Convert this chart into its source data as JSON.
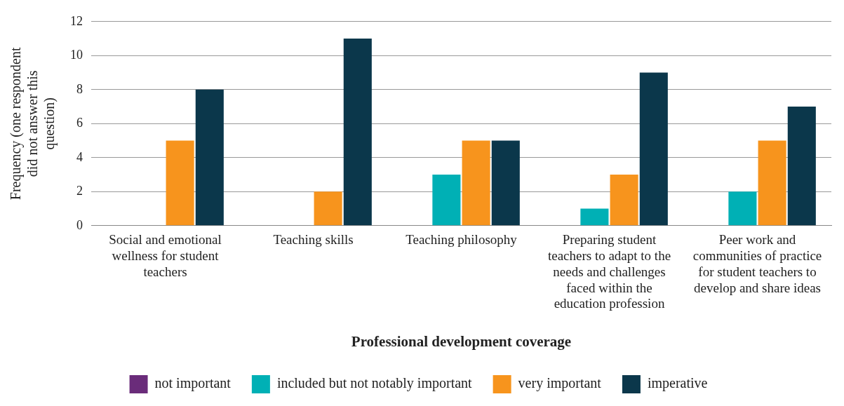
{
  "chart_data": {
    "type": "bar",
    "categories": [
      "Social and emotional wellness for student teachers",
      "Teaching skills",
      "Teaching philosophy",
      "Preparing student teachers to adapt to the needs and challenges faced within the education profession",
      "Peer work and communities of practice for student teachers to develop and share ideas"
    ],
    "series": [
      {
        "name": "not important",
        "color": "#6a2c7a",
        "values": [
          0,
          0,
          0,
          0,
          0
        ]
      },
      {
        "name": "included but not notably important",
        "color": "#00b0b5",
        "values": [
          0,
          0,
          3,
          1,
          2
        ]
      },
      {
        "name": "very important",
        "color": "#f7941d",
        "values": [
          5,
          2,
          5,
          3,
          5
        ]
      },
      {
        "name": "imperative",
        "color": "#0b374b",
        "values": [
          8,
          11,
          5,
          9,
          7
        ]
      }
    ],
    "xlabel": "Professional development coverage",
    "ylabel": "Frequency (one respondent did not answer this question)",
    "ylim": [
      0,
      12
    ],
    "yticks": [
      0,
      2,
      4,
      6,
      8,
      10,
      12
    ],
    "grid": "y",
    "legend": "bottom"
  }
}
